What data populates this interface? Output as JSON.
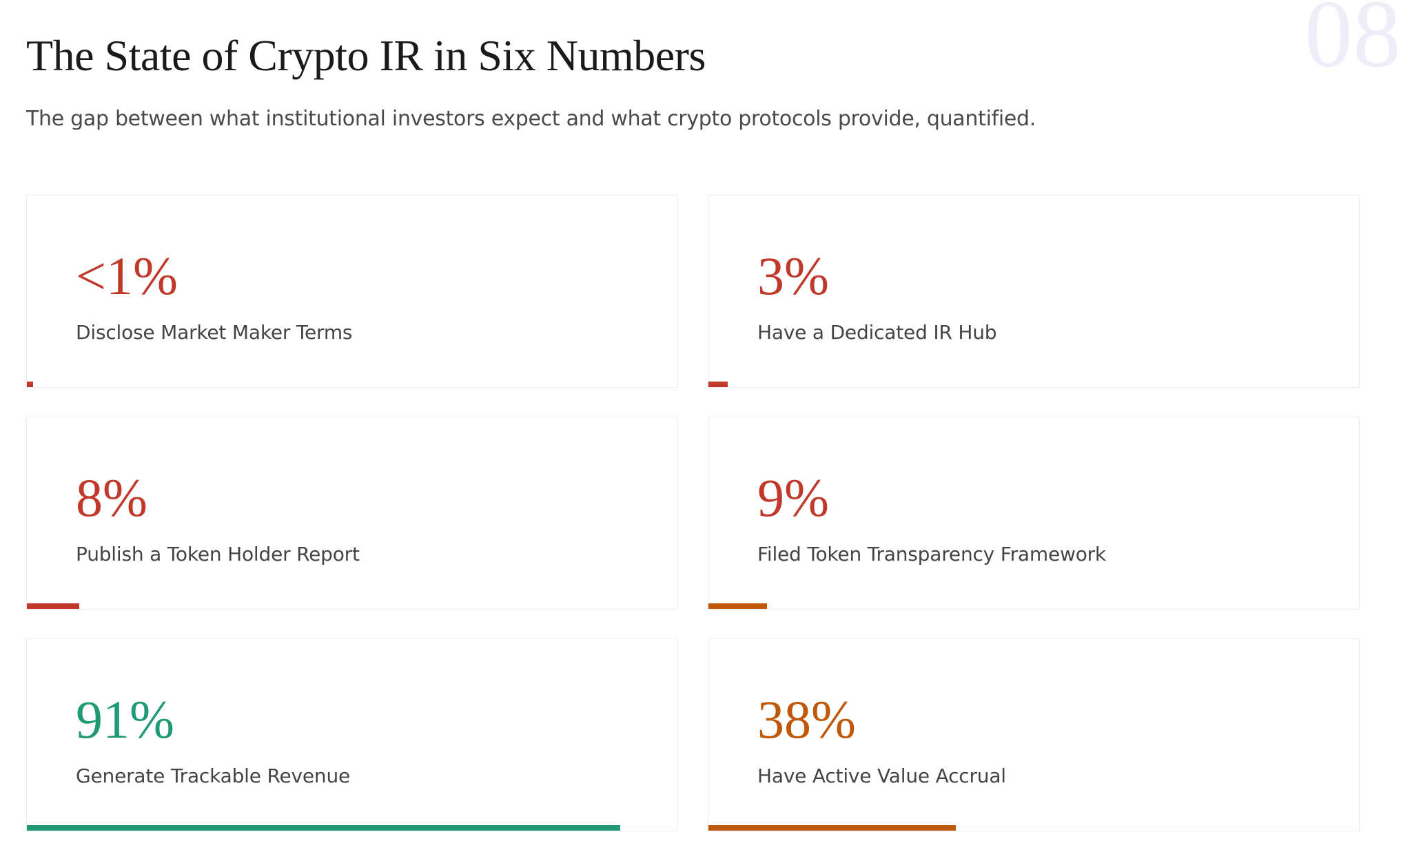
{
  "header": {
    "title": "The State of Crypto IR in Six Numbers",
    "subtitle": "The gap between what institutional investors expect and what crypto protocols provide, quantified.",
    "page_number": "08"
  },
  "cards": [
    {
      "value": 1,
      "value_label": "<1%",
      "label": "Disclose Market Maker Terms",
      "color": "#c0392b",
      "bar_color": "#c0392b"
    },
    {
      "value": 3,
      "value_label": "3%",
      "label": "Have a Dedicated IR Hub",
      "color": "#c0392b",
      "bar_color": "#c0392b"
    },
    {
      "value": 8,
      "value_label": "8%",
      "label": "Publish a Token Holder Report",
      "color": "#c0392b",
      "bar_color": "#c0392b"
    },
    {
      "value": 9,
      "value_label": "9%",
      "label": "Filed Token Transparency Framework",
      "color": "#c0392b",
      "bar_color": "#c0580a"
    },
    {
      "value": 91,
      "value_label": "91%",
      "label": "Generate Trackable Revenue",
      "color": "#1f9a75",
      "bar_color": "#1f9a75"
    },
    {
      "value": 38,
      "value_label": "38%",
      "label": "Have Active Value Accrual",
      "color": "#c0580a",
      "bar_color": "#c0580a"
    }
  ]
}
